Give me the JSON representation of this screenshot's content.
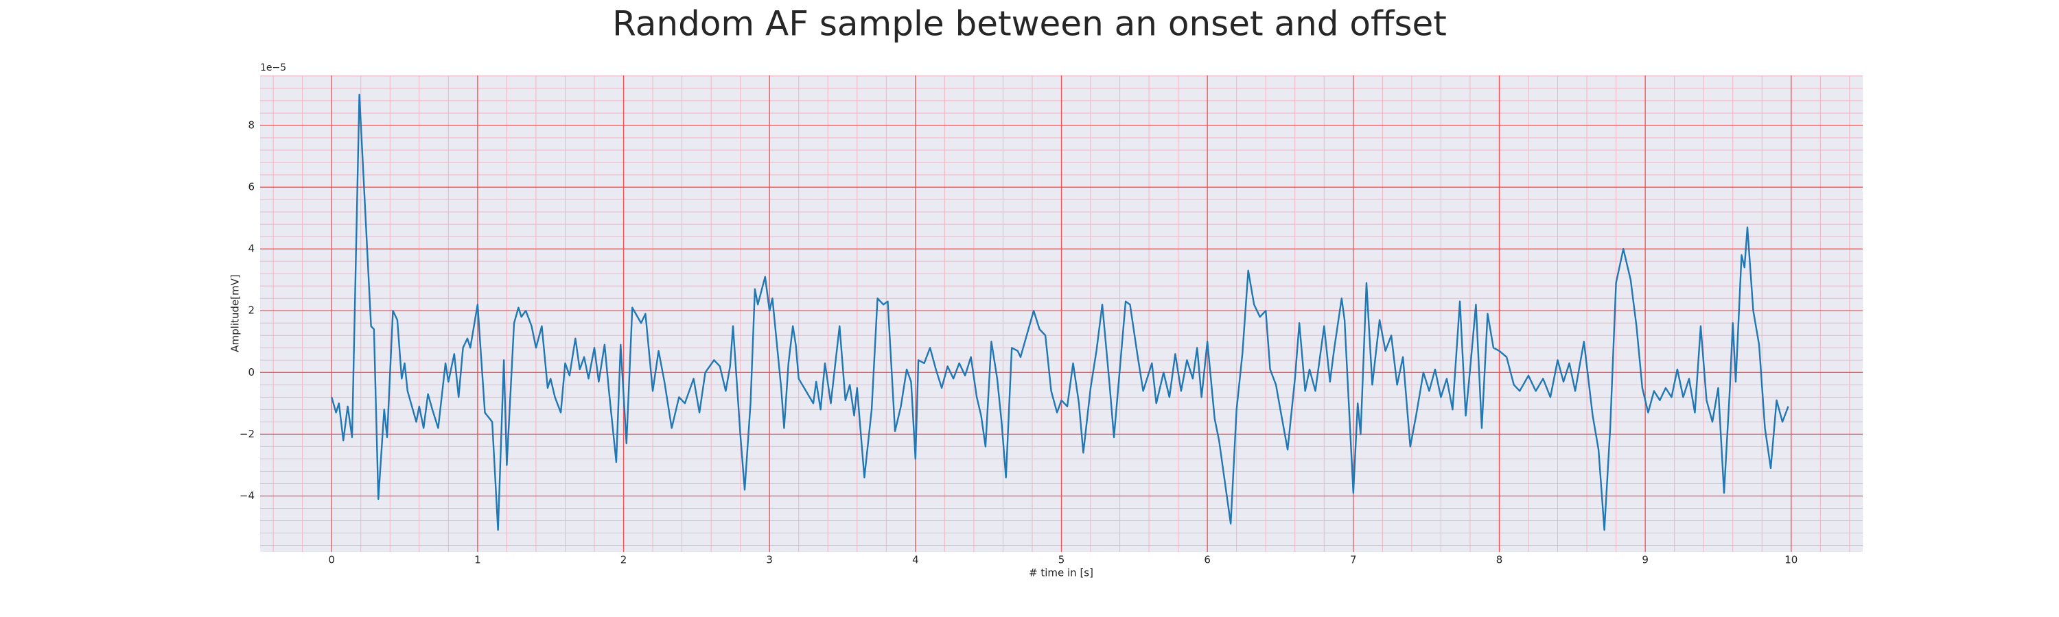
{
  "chart_data": {
    "type": "line",
    "title": "Random AF sample between an onset and offset",
    "xlabel": "# time in [s]",
    "ylabel": "Amplitude[mV]",
    "offset_text": "1e−5",
    "xlim": [
      -0.49,
      10.49
    ],
    "ylim": [
      -5.81,
      9.62
    ],
    "xticks": [
      0,
      1,
      2,
      3,
      4,
      5,
      6,
      7,
      8,
      9,
      10
    ],
    "yticks": [
      {
        "value": -4,
        "label": "−4"
      },
      {
        "value": -2,
        "label": "−2"
      },
      0,
      2,
      4,
      6,
      8
    ],
    "grid": true,
    "grid_color": "#ff4d4d",
    "minor_grid_color": "#f4b3c2",
    "background": "#eaeaf2",
    "xminor": [
      -0.4,
      -0.2,
      0,
      0.2,
      0.4,
      0.6,
      0.8,
      1,
      1.2,
      1.4,
      1.6,
      1.8,
      2,
      2.2,
      2.4,
      2.6,
      2.8,
      3,
      3.2,
      3.4,
      3.6,
      3.8,
      4,
      4.2,
      4.4,
      4.6,
      4.8,
      5,
      5.2,
      5.4,
      5.6,
      5.8,
      6,
      6.2,
      6.4,
      6.6,
      6.8,
      7,
      7.2,
      7.4,
      7.6,
      7.8,
      8,
      8.2,
      8.4,
      8.6,
      8.8,
      9,
      9.2,
      9.4,
      9.6,
      9.8,
      10,
      10.2,
      10.4
    ],
    "yminor": [
      -5.6,
      -5.2,
      -4.8,
      -4.4,
      -4,
      -3.6,
      -3.2,
      -2.8,
      -2.4,
      -2,
      -1.6,
      -1.2,
      -0.8,
      -0.4,
      0,
      0.4,
      0.8,
      1.2,
      1.6,
      2,
      2.4,
      2.8,
      3.2,
      3.6,
      4,
      4.4,
      4.8,
      5.2,
      5.6,
      6,
      6.4,
      6.8,
      7.2,
      7.6,
      8,
      8.4,
      8.8,
      9.2,
      9.6
    ],
    "x": [
      0,
      0.03,
      0.05,
      0.08,
      0.11,
      0.14,
      0.19,
      0.27,
      0.29,
      0.32,
      0.36,
      0.38,
      0.42,
      0.45,
      0.48,
      0.5,
      0.52,
      0.58,
      0.6,
      0.63,
      0.66,
      0.69,
      0.73,
      0.78,
      0.8,
      0.84,
      0.87,
      0.9,
      0.93,
      0.95,
      1.0,
      1.05,
      1.1,
      1.14,
      1.18,
      1.2,
      1.25,
      1.28,
      1.3,
      1.33,
      1.37,
      1.4,
      1.44,
      1.48,
      1.5,
      1.53,
      1.57,
      1.6,
      1.63,
      1.67,
      1.7,
      1.73,
      1.76,
      1.8,
      1.83,
      1.87,
      1.9,
      1.95,
      1.98,
      2.02,
      2.06,
      2.12,
      2.15,
      2.2,
      2.24,
      2.28,
      2.33,
      2.38,
      2.42,
      2.48,
      2.52,
      2.56,
      2.62,
      2.66,
      2.7,
      2.73,
      2.75,
      2.8,
      2.83,
      2.87,
      2.9,
      2.92,
      2.97,
      3.0,
      3.02,
      3.08,
      3.1,
      3.13,
      3.16,
      3.18,
      3.2,
      3.25,
      3.3,
      3.32,
      3.35,
      3.38,
      3.42,
      3.48,
      3.52,
      3.55,
      3.58,
      3.6,
      3.65,
      3.7,
      3.74,
      3.78,
      3.81,
      3.86,
      3.9,
      3.94,
      3.97,
      4.0,
      4.02,
      4.06,
      4.1,
      4.14,
      4.18,
      4.22,
      4.26,
      4.3,
      4.34,
      4.38,
      4.42,
      4.45,
      4.48,
      4.52,
      4.56,
      4.59,
      4.62,
      4.66,
      4.7,
      4.72,
      4.78,
      4.81,
      4.85,
      4.89,
      4.93,
      4.97,
      5.0,
      5.04,
      5.08,
      5.12,
      5.15,
      5.2,
      5.24,
      5.28,
      5.33,
      5.36,
      5.44,
      5.47,
      5.52,
      5.56,
      5.62,
      5.65,
      5.7,
      5.74,
      5.78,
      5.82,
      5.86,
      5.9,
      5.93,
      5.96,
      6.0,
      6.05,
      6.08,
      6.16,
      6.2,
      6.24,
      6.28,
      6.32,
      6.36,
      6.4,
      6.43,
      6.47,
      6.5,
      6.55,
      6.6,
      6.63,
      6.67,
      6.7,
      6.74,
      6.8,
      6.84,
      6.87,
      6.92,
      6.94,
      7.0,
      7.03,
      7.05,
      7.09,
      7.13,
      7.18,
      7.22,
      7.26,
      7.3,
      7.34,
      7.39,
      7.43,
      7.48,
      7.52,
      7.56,
      7.6,
      7.64,
      7.68,
      7.73,
      7.77,
      7.8,
      7.84,
      7.88,
      7.92,
      7.96,
      8.0,
      8.05,
      8.1,
      8.14,
      8.2,
      8.25,
      8.3,
      8.35,
      8.4,
      8.44,
      8.48,
      8.52,
      8.58,
      8.64,
      8.68,
      8.72,
      8.76,
      8.8,
      8.85,
      8.9,
      8.94,
      8.98,
      9.02,
      9.06,
      9.1,
      9.14,
      9.18,
      9.22,
      9.26,
      9.3,
      9.34,
      9.38,
      9.42,
      9.46,
      9.5,
      9.54,
      9.58,
      9.6,
      9.62,
      9.66,
      9.68,
      9.7,
      9.74,
      9.78,
      9.82,
      9.86,
      9.9,
      9.94,
      9.98
    ],
    "series": [
      {
        "color": "#1f77b4",
        "values": [
          -0.8,
          -1.3,
          -1.0,
          -2.2,
          -1.1,
          -2.1,
          9.0,
          1.5,
          1.4,
          -4.1,
          -1.2,
          -2.1,
          2.0,
          1.7,
          -0.2,
          0.3,
          -0.6,
          -1.6,
          -1.1,
          -1.8,
          -0.7,
          -1.2,
          -1.8,
          0.3,
          -0.3,
          0.6,
          -0.8,
          0.8,
          1.1,
          0.8,
          2.2,
          -1.3,
          -1.6,
          -5.1,
          0.4,
          -3.0,
          1.6,
          2.1,
          1.8,
          2.0,
          1.5,
          0.8,
          1.5,
          -0.5,
          -0.2,
          -0.8,
          -1.3,
          0.3,
          -0.1,
          1.1,
          0.1,
          0.5,
          -0.2,
          0.8,
          -0.3,
          0.9,
          -0.6,
          -2.9,
          0.9,
          -2.3,
          2.1,
          1.6,
          1.9,
          -0.6,
          0.7,
          -0.3,
          -1.8,
          -0.8,
          -1.0,
          -0.2,
          -1.3,
          0.0,
          0.4,
          0.2,
          -0.6,
          0.2,
          1.5,
          -2.0,
          -3.8,
          -1.0,
          2.7,
          2.2,
          3.1,
          2.0,
          2.4,
          -0.5,
          -1.8,
          0.3,
          1.5,
          0.9,
          -0.2,
          -0.6,
          -1.0,
          -0.3,
          -1.2,
          0.3,
          -1.0,
          1.5,
          -0.9,
          -0.4,
          -1.4,
          -0.5,
          -3.4,
          -1.2,
          2.4,
          2.2,
          2.3,
          -1.9,
          -1.1,
          0.1,
          -0.3,
          -2.8,
          0.4,
          0.3,
          0.8,
          0.1,
          -0.5,
          0.2,
          -0.2,
          0.3,
          -0.1,
          0.5,
          -0.8,
          -1.4,
          -2.4,
          1.0,
          -0.2,
          -1.6,
          -3.4,
          0.8,
          0.7,
          0.5,
          1.5,
          2.0,
          1.4,
          1.2,
          -0.6,
          -1.3,
          -0.9,
          -1.1,
          0.3,
          -1.0,
          -2.6,
          -0.5,
          0.7,
          2.2,
          -0.4,
          -2.1,
          2.3,
          2.2,
          0.6,
          -0.6,
          0.3,
          -1.0,
          0.0,
          -0.8,
          0.6,
          -0.6,
          0.4,
          -0.2,
          0.8,
          -0.8,
          1.0,
          -1.5,
          -2.2,
          -4.9,
          -1.2,
          0.6,
          3.3,
          2.2,
          1.8,
          2.0,
          0.1,
          -0.4,
          -1.2,
          -2.5,
          -0.2,
          1.6,
          -0.6,
          0.1,
          -0.6,
          1.5,
          -0.3,
          0.8,
          2.4,
          1.7,
          -3.9,
          -1.0,
          -2.0,
          2.9,
          -0.4,
          1.7,
          0.7,
          1.2,
          -0.4,
          0.5,
          -2.4,
          -1.4,
          0.0,
          -0.6,
          0.1,
          -0.8,
          -0.2,
          -1.2,
          2.3,
          -1.4,
          0.1,
          2.2,
          -1.8,
          1.9,
          0.8,
          0.7,
          0.5,
          -0.4,
          -0.6,
          -0.1,
          -0.6,
          -0.2,
          -0.8,
          0.4,
          -0.3,
          0.3,
          -0.6,
          1.0,
          -1.4,
          -2.5,
          -5.1,
          -1.8,
          2.9,
          4.0,
          3.0,
          1.5,
          -0.5,
          -1.3,
          -0.6,
          -0.9,
          -0.5,
          -0.8,
          0.1,
          -0.8,
          -0.2,
          -1.3,
          1.5,
          -0.9,
          -1.6,
          -0.5,
          -3.9,
          -0.5,
          1.6,
          -0.3,
          3.8,
          3.4,
          4.7,
          2.0,
          0.9,
          -1.8,
          -3.1,
          -0.9,
          -1.6,
          -1.1
        ]
      }
    ]
  }
}
